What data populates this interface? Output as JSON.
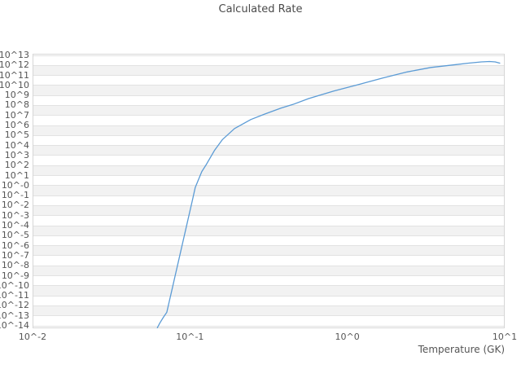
{
  "title": "Calculated Rate",
  "x_axis": {
    "title": "Temperature (GK)",
    "tick_labels": [
      "10^-2",
      "10^-1",
      "10^0",
      "10^1"
    ],
    "tick_log10": [
      -2,
      -1,
      0,
      1
    ]
  },
  "y_axis": {
    "tick_labels": [
      "10^13",
      "10^12",
      "10^11",
      "10^10",
      "10^9",
      "10^8",
      "10^7",
      "10^6",
      "10^5",
      "10^4",
      "10^3",
      "10^2",
      "10^1",
      "10^-0",
      "10^-1",
      "10^-2",
      "10^-3",
      "10^-4",
      "10^-5",
      "10^-6",
      "10^-7",
      "10^-8",
      "10^-9",
      "10^-10",
      "10^-11",
      "10^-12",
      "10^-13",
      "10^-14"
    ],
    "tick_log10": [
      13,
      12,
      11,
      10,
      9,
      8,
      7,
      6,
      5,
      4,
      3,
      2,
      1,
      0,
      -1,
      -2,
      -3,
      -4,
      -5,
      -6,
      -7,
      -8,
      -9,
      -10,
      -11,
      -12,
      -13,
      -14
    ]
  },
  "colors": {
    "line": "#5b9bd5",
    "band": "#f2f2f2",
    "grid": "#e2e2e2",
    "border": "#d6d6d6",
    "text": "#555555",
    "title_text": "#4a4a4a"
  },
  "chart_data": {
    "type": "line",
    "title": "Calculated Rate",
    "xlabel": "Temperature (GK)",
    "ylabel": "",
    "x_scale": "log",
    "y_scale": "log",
    "xlim": [
      0.01,
      10
    ],
    "ylim": [
      "1e-14",
      "1e13"
    ],
    "grid": "horizontal-decade-lines-with-alternating-bands",
    "legend": "none",
    "series": [
      {
        "name": "calculated-rate",
        "x_is": "temperature_GK",
        "y_is": "log10_of_rate",
        "points": [
          [
            0.062,
            -14.2
          ],
          [
            0.0645,
            -13.7
          ],
          [
            0.0678,
            -13.15
          ],
          [
            0.0713,
            -12.65
          ],
          [
            0.0743,
            -11.4
          ],
          [
            0.0775,
            -10.16
          ],
          [
            0.0808,
            -8.91
          ],
          [
            0.0842,
            -7.67
          ],
          [
            0.0878,
            -6.42
          ],
          [
            0.0915,
            -5.18
          ],
          [
            0.0954,
            -3.93
          ],
          [
            0.0995,
            -2.69
          ],
          [
            0.1037,
            -1.44
          ],
          [
            0.108,
            -0.2
          ],
          [
            0.115,
            0.85
          ],
          [
            0.119,
            1.4
          ],
          [
            0.127,
            2.1
          ],
          [
            0.143,
            3.5
          ],
          [
            0.161,
            4.6
          ],
          [
            0.192,
            5.7
          ],
          [
            0.244,
            6.6
          ],
          [
            0.3,
            7.15
          ],
          [
            0.38,
            7.75
          ],
          [
            0.45,
            8.1
          ],
          [
            0.57,
            8.7
          ],
          [
            0.82,
            9.45
          ],
          [
            1.18,
            10.1
          ],
          [
            1.68,
            10.75
          ],
          [
            2.4,
            11.35
          ],
          [
            3.4,
            11.8
          ],
          [
            4.9,
            12.08
          ],
          [
            5.9,
            12.23
          ],
          [
            7.1,
            12.35
          ],
          [
            8.0,
            12.39
          ],
          [
            8.7,
            12.35
          ],
          [
            9.3,
            12.23
          ]
        ]
      }
    ]
  }
}
